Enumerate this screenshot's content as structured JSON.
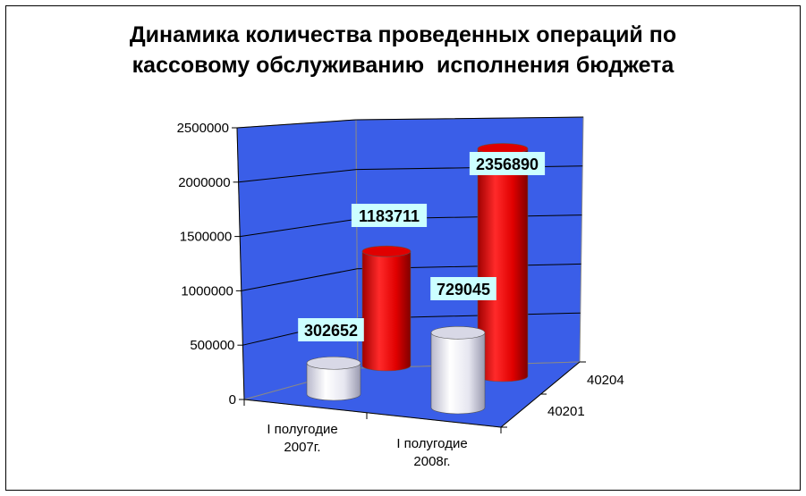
{
  "chart_data": {
    "type": "bar",
    "title_lines": [
      "Динамика количества проведенных операций по",
      "кассовому обслуживанию  исполнения бюджета"
    ],
    "categories": [
      [
        "I полугодие",
        "2007г."
      ],
      [
        "I  полугодие",
        "2008г."
      ]
    ],
    "series": [
      {
        "name": "40201",
        "values": [
          302652,
          729045
        ]
      },
      {
        "name": "40204",
        "values": [
          1183711,
          2356890
        ]
      }
    ],
    "ylim": [
      0,
      2500000
    ],
    "yticks": [
      "0",
      "500000",
      "1000000",
      "1500000",
      "2000000",
      "2500000"
    ],
    "grid": true,
    "colors": {
      "wall": "#3a5ee8",
      "series_40201": "#e8e8f2",
      "series_40204": "#e00000",
      "label_bg": "#ccffff"
    }
  }
}
